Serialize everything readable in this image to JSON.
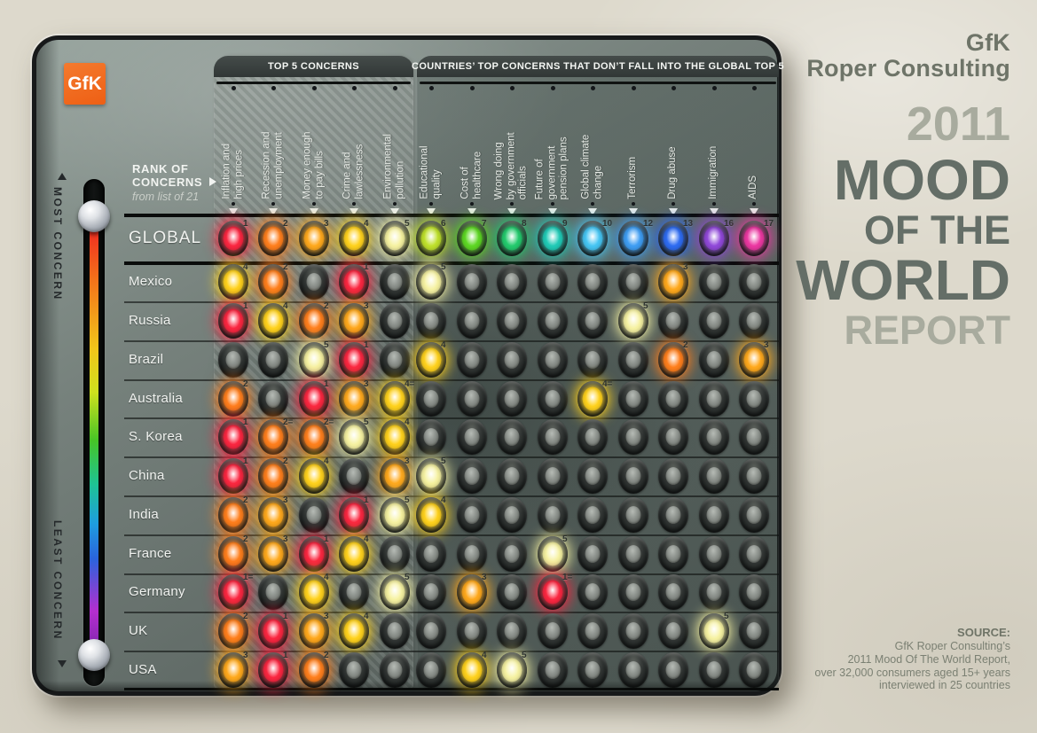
{
  "page": {
    "logo_text": "GfK",
    "headers": {
      "top5": "TOP 5 CONCERNS",
      "others": "COUNTRIES’ TOP CONCERNS THAT DON’T FALL INTO THE GLOBAL TOP 5"
    },
    "rank_caption": {
      "line1": "RANK OF",
      "line2": "CONCERNS",
      "subtitle": "from list of 21"
    },
    "slider": {
      "top_label": "MOST CONCERN",
      "bottom_label": "LEAST CONCERN"
    },
    "brand_panel": {
      "brand_line1": "GfK",
      "brand_line2": "Roper Consulting",
      "title_year": "2011",
      "title_line1": "MOOD",
      "title_line2": "OF THE",
      "title_line3": "WORLD",
      "title_line4": "REPORT",
      "source_heading": "SOURCE:",
      "source_lines": [
        "GfK Roper Consulting’s",
        "2011 Mood Of The World Report,",
        "over 32,000 consumers aged 15+ years",
        "interviewed in 25 countries"
      ]
    }
  },
  "chart_data": {
    "type": "heatmap",
    "title": "2011 Mood of the World Report — Rank of concerns (from list of 21)",
    "legend": {
      "top": "MOST CONCERN",
      "bottom": "LEAST CONCERN"
    },
    "column_groups": [
      {
        "id": "top5",
        "label": "TOP 5 CONCERNS",
        "columns": [
          0,
          1,
          2,
          3,
          4
        ]
      },
      {
        "id": "others",
        "label": "COUNTRIES’ TOP CONCERNS THAT DON’T FALL INTO THE GLOBAL TOP 5",
        "columns": [
          5,
          6,
          7,
          8,
          9,
          10,
          11,
          12,
          13
        ]
      }
    ],
    "columns": [
      {
        "label_lines": [
          "Inflation and",
          "high prices"
        ],
        "group": "top5"
      },
      {
        "label_lines": [
          "Recession and",
          "unemployment"
        ],
        "group": "top5"
      },
      {
        "label_lines": [
          "Money enough",
          "to pay bills"
        ],
        "group": "top5"
      },
      {
        "label_lines": [
          "Crime and",
          "lawlessness"
        ],
        "group": "top5"
      },
      {
        "label_lines": [
          "Environmental",
          "pollution"
        ],
        "group": "top5"
      },
      {
        "label_lines": [
          "Educational",
          "quality"
        ],
        "group": "others"
      },
      {
        "label_lines": [
          "Cost of",
          "healthcare"
        ],
        "group": "others"
      },
      {
        "label_lines": [
          "Wrong doing",
          "by government",
          "officials"
        ],
        "group": "others"
      },
      {
        "label_lines": [
          "Future of",
          "government",
          "pension plans"
        ],
        "group": "others"
      },
      {
        "label_lines": [
          "Global climate",
          "change"
        ],
        "group": "others"
      },
      {
        "label_lines": [
          "Terrorism"
        ],
        "group": "others"
      },
      {
        "label_lines": [
          "Drug abuse"
        ],
        "group": "others"
      },
      {
        "label_lines": [
          "Immigration"
        ],
        "group": "others"
      },
      {
        "label_lines": [
          "AIDS"
        ],
        "group": "others"
      }
    ],
    "rows": [
      {
        "name": "GLOBAL",
        "ranks": [
          "1",
          "2",
          "3",
          "4",
          "5",
          "6",
          "7",
          "8",
          "9",
          "10",
          "12",
          "13",
          "16",
          "17"
        ]
      },
      {
        "name": "Mexico",
        "ranks": [
          "4",
          "2",
          "",
          "1",
          "",
          "5",
          "",
          "",
          "",
          "",
          "",
          "3",
          "",
          ""
        ]
      },
      {
        "name": "Russia",
        "ranks": [
          "1",
          "4",
          "2",
          "3",
          "",
          "",
          "",
          "",
          "",
          "",
          "5",
          "",
          "",
          ""
        ]
      },
      {
        "name": "Brazil",
        "ranks": [
          "",
          "",
          "5",
          "1",
          "",
          "4",
          "",
          "",
          "",
          "",
          "",
          "2",
          "",
          "3"
        ]
      },
      {
        "name": "Australia",
        "ranks": [
          "2",
          "",
          "1",
          "3",
          "4=",
          "",
          "",
          "",
          "",
          "4=",
          "",
          "",
          "",
          ""
        ]
      },
      {
        "name": "S. Korea",
        "ranks": [
          "1",
          "2=",
          "2=",
          "5",
          "4",
          "",
          "",
          "",
          "",
          "",
          "",
          "",
          "",
          ""
        ]
      },
      {
        "name": "China",
        "ranks": [
          "1",
          "2",
          "4",
          "",
          "3",
          "5",
          "",
          "",
          "",
          "",
          "",
          "",
          "",
          ""
        ]
      },
      {
        "name": "India",
        "ranks": [
          "2",
          "3",
          "",
          "1",
          "5",
          "4",
          "",
          "",
          "",
          "",
          "",
          "",
          "",
          ""
        ]
      },
      {
        "name": "France",
        "ranks": [
          "2",
          "3",
          "1",
          "4",
          "",
          "",
          "",
          "",
          "5",
          "",
          "",
          "",
          "",
          ""
        ]
      },
      {
        "name": "Germany",
        "ranks": [
          "1=",
          "",
          "4",
          "",
          "5",
          "",
          "3",
          "",
          "1=",
          "",
          "",
          "",
          "",
          ""
        ]
      },
      {
        "name": "UK",
        "ranks": [
          "2",
          "1",
          "3",
          "4",
          "",
          "",
          "",
          "",
          "",
          "",
          "",
          "",
          "5",
          ""
        ]
      },
      {
        "name": "USA",
        "ranks": [
          "3",
          "1",
          "2",
          "",
          "",
          "",
          "4",
          "5",
          "",
          "",
          "",
          "",
          "",
          ""
        ]
      }
    ],
    "rank_colors": {
      "1": "#fb2741",
      "2": "#ff7f1d",
      "3": "#ffa91d",
      "4": "#ffd21d",
      "5": "#f6f2a2",
      "6": "#bfe12c",
      "7": "#5ed824",
      "8": "#24cb6e",
      "9": "#21cbb7",
      "10": "#46c6f4",
      "12": "#3f9ef4",
      "13": "#2e6cf2",
      "16": "#9149da",
      "17": "#ec38a2"
    },
    "notes": "Number = rank of concern in that country; '=' marks tied ranks; unlit dot = concern not in that country's top 5. Global ranks 11, 14 and 15 are not shown as columns."
  }
}
